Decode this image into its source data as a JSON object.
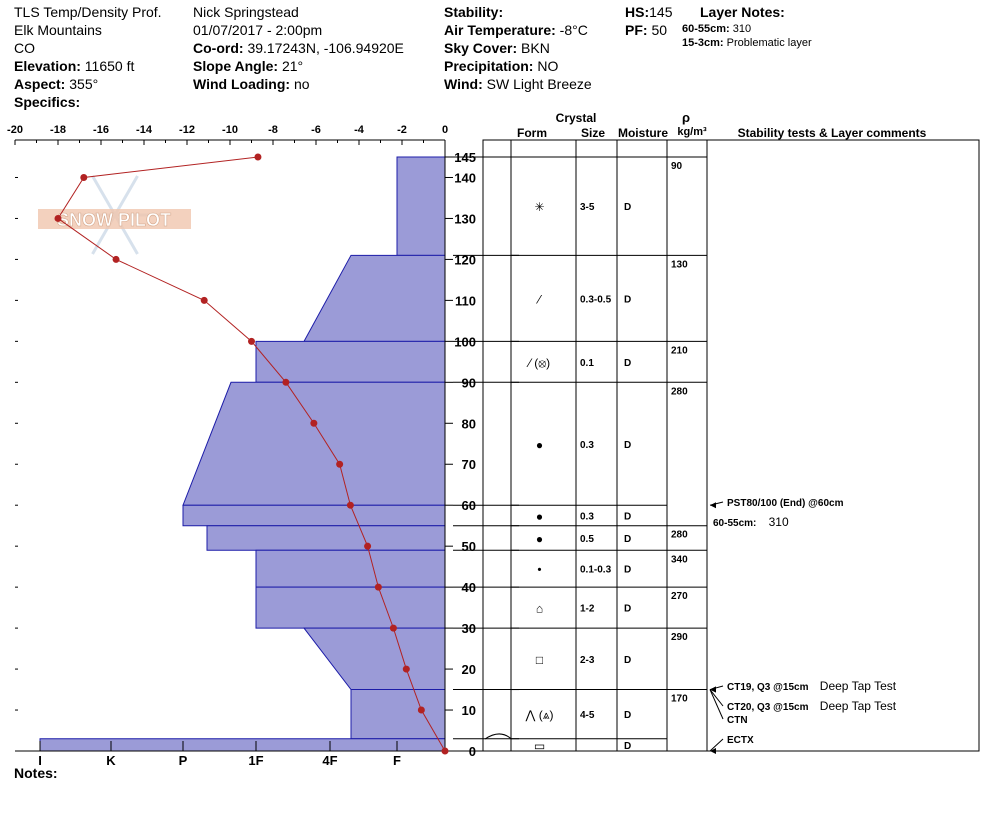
{
  "header": {
    "title": "TLS Temp/Density Prof.",
    "location": "Elk Mountains",
    "state": "CO",
    "elevation_label": "Elevation:",
    "elevation_value": "11650 ft",
    "aspect_label": "Aspect:",
    "aspect_value": "355°",
    "specifics_label": "Specifics:",
    "observer": "Nick Springstead",
    "datetime": "01/07/2017 - 2:00pm",
    "coord_label": "Co-ord:",
    "coord_value": "39.17243N, -106.94920E",
    "slope_label": "Slope Angle:",
    "slope_value": "21°",
    "wind_loading_label": "Wind Loading:",
    "wind_loading_value": "no",
    "stability_label": "Stability:",
    "air_temp_label": "Air Temperature:",
    "air_temp_value": "-8°C",
    "sky_label": "Sky Cover:",
    "sky_value": "BKN",
    "precip_label": "Precipitation:",
    "precip_value": "NO",
    "wind_label": "Wind:",
    "wind_value": "SW  Light Breeze",
    "hs_label": "HS:",
    "hs_value": "145",
    "pf_label": "PF:",
    "pf_value": "50",
    "layer_notes_label": "Layer Notes:",
    "layer_note_1_range": "60-55cm:",
    "layer_note_1_text": "310",
    "layer_note_2_range": "15-3cm:",
    "layer_note_2_text": "Problematic layer",
    "notes_label": "Notes:",
    "watermark": "SNOW PILOT"
  },
  "colors": {
    "hardness_fill": "#9b9bd7",
    "hardness_stroke": "#1c1ca8",
    "temp_line": "#b22222"
  },
  "chart_data": {
    "type": "line",
    "temp_axis": {
      "ticks": [
        -20,
        -18,
        -16,
        -14,
        -12,
        -10,
        -8,
        -6,
        -4,
        -2,
        0
      ],
      "range": [
        -20,
        0
      ]
    },
    "height_axis": {
      "ticks": [
        0,
        10,
        20,
        30,
        40,
        50,
        60,
        70,
        80,
        90,
        100,
        110,
        120,
        130,
        140,
        145
      ],
      "range": [
        0,
        145
      ]
    },
    "hardness_axis": [
      "I",
      "K",
      "P",
      "1F",
      "4F",
      "F"
    ],
    "temperature_profile": [
      {
        "height": 145,
        "temp": -8.7
      },
      {
        "height": 140,
        "temp": -16.8
      },
      {
        "height": 130,
        "temp": -18.0
      },
      {
        "height": 120,
        "temp": -15.3
      },
      {
        "height": 110,
        "temp": -11.2
      },
      {
        "height": 100,
        "temp": -9.0
      },
      {
        "height": 90,
        "temp": -7.4
      },
      {
        "height": 80,
        "temp": -6.1
      },
      {
        "height": 70,
        "temp": -4.9
      },
      {
        "height": 60,
        "temp": -4.4
      },
      {
        "height": 50,
        "temp": -3.6
      },
      {
        "height": 40,
        "temp": -3.1
      },
      {
        "height": 30,
        "temp": -2.4
      },
      {
        "height": 20,
        "temp": -1.8
      },
      {
        "height": 10,
        "temp": -1.1
      },
      {
        "height": 0,
        "temp": 0.0
      }
    ],
    "hardness_layers": [
      {
        "top": 145,
        "bottom": 121,
        "top_hardness": "F",
        "bottom_hardness": "F"
      },
      {
        "top": 121,
        "bottom": 100,
        "top_hardness": "F-",
        "bottom_hardness": "4F"
      },
      {
        "top": 100,
        "bottom": 90,
        "top_hardness": "1F",
        "bottom_hardness": "1F"
      },
      {
        "top": 90,
        "bottom": 60,
        "top_hardness": "1F+",
        "bottom_hardness": "P"
      },
      {
        "top": 60,
        "bottom": 55,
        "top_hardness": "P",
        "bottom_hardness": "P"
      },
      {
        "top": 55,
        "bottom": 49,
        "top_hardness": "P-",
        "bottom_hardness": "P-"
      },
      {
        "top": 49,
        "bottom": 40,
        "top_hardness": "1F",
        "bottom_hardness": "1F"
      },
      {
        "top": 40,
        "bottom": 30,
        "top_hardness": "1F",
        "bottom_hardness": "1F"
      },
      {
        "top": 30,
        "bottom": 15,
        "top_hardness": "4F",
        "bottom_hardness": "F+"
      },
      {
        "top": 15,
        "bottom": 3,
        "top_hardness": "F+",
        "bottom_hardness": "F+"
      },
      {
        "top": 3,
        "bottom": 0,
        "top_hardness": "I",
        "bottom_hardness": "I"
      }
    ],
    "table_headers": {
      "form": "Form",
      "crystal": "Crystal",
      "size": "Size",
      "moisture": "Moisture",
      "rho": "ρ",
      "density_unit": "kg/m³",
      "comments": "Stability tests & Layer comments"
    },
    "layers_table": [
      {
        "top": 145,
        "bottom": 121,
        "form": "✳",
        "size": "3-5",
        "moisture": "D"
      },
      {
        "top": 121,
        "bottom": 100,
        "form": "⁄",
        "size": "0.3-0.5",
        "moisture": "D"
      },
      {
        "top": 100,
        "bottom": 90,
        "form": "⁄ (⦻)",
        "size": "0.1",
        "moisture": "D"
      },
      {
        "top": 90,
        "bottom": 60,
        "form": "●",
        "size": "0.3",
        "moisture": "D"
      },
      {
        "top": 60,
        "bottom": 55,
        "form": "●",
        "size": "0.3",
        "moisture": "D"
      },
      {
        "top": 55,
        "bottom": 49,
        "form": "●",
        "size": "0.5",
        "moisture": "D"
      },
      {
        "top": 49,
        "bottom": 40,
        "form": "•",
        "size": "0.1-0.3",
        "moisture": "D"
      },
      {
        "top": 40,
        "bottom": 30,
        "form": "⌂",
        "size": "1-2",
        "moisture": "D"
      },
      {
        "top": 30,
        "bottom": 15,
        "form": "□",
        "size": "2-3",
        "moisture": "D"
      },
      {
        "top": 15,
        "bottom": 3,
        "form": "⋀ (⩓)",
        "size": "4-5",
        "moisture": "D"
      },
      {
        "top": 3,
        "bottom": 0,
        "form": "▭",
        "size": "",
        "moisture": "D"
      }
    ],
    "densities": [
      {
        "top": 145,
        "bottom": 121,
        "value": "90"
      },
      {
        "top": 121,
        "bottom": 100,
        "value": "130"
      },
      {
        "top": 100,
        "bottom": 90,
        "value": "210"
      },
      {
        "top": 90,
        "bottom": 55,
        "value": "280"
      },
      {
        "top": 55,
        "bottom": 49,
        "value": "280"
      },
      {
        "top": 49,
        "bottom": 40,
        "value": "340"
      },
      {
        "top": 40,
        "bottom": 30,
        "value": "270"
      },
      {
        "top": 30,
        "bottom": 15,
        "value": "290"
      },
      {
        "top": 15,
        "bottom": 0,
        "value": "170"
      }
    ],
    "stability_comments": [
      {
        "height": 60,
        "bold": "PST80/100 (End) @60cm",
        "normal": ""
      },
      {
        "height": 55,
        "bold": "60-55cm:",
        "normal": "310"
      },
      {
        "height": 15,
        "bold": "CT19, Q3 @15cm",
        "normal": "Deep Tap Test"
      },
      {
        "height": 15,
        "bold": "CT20, Q3 @15cm",
        "normal": "Deep Tap Test"
      },
      {
        "height": 15,
        "bold": "CTN",
        "normal": ""
      },
      {
        "height": 0,
        "bold": "ECTX",
        "normal": ""
      }
    ]
  }
}
